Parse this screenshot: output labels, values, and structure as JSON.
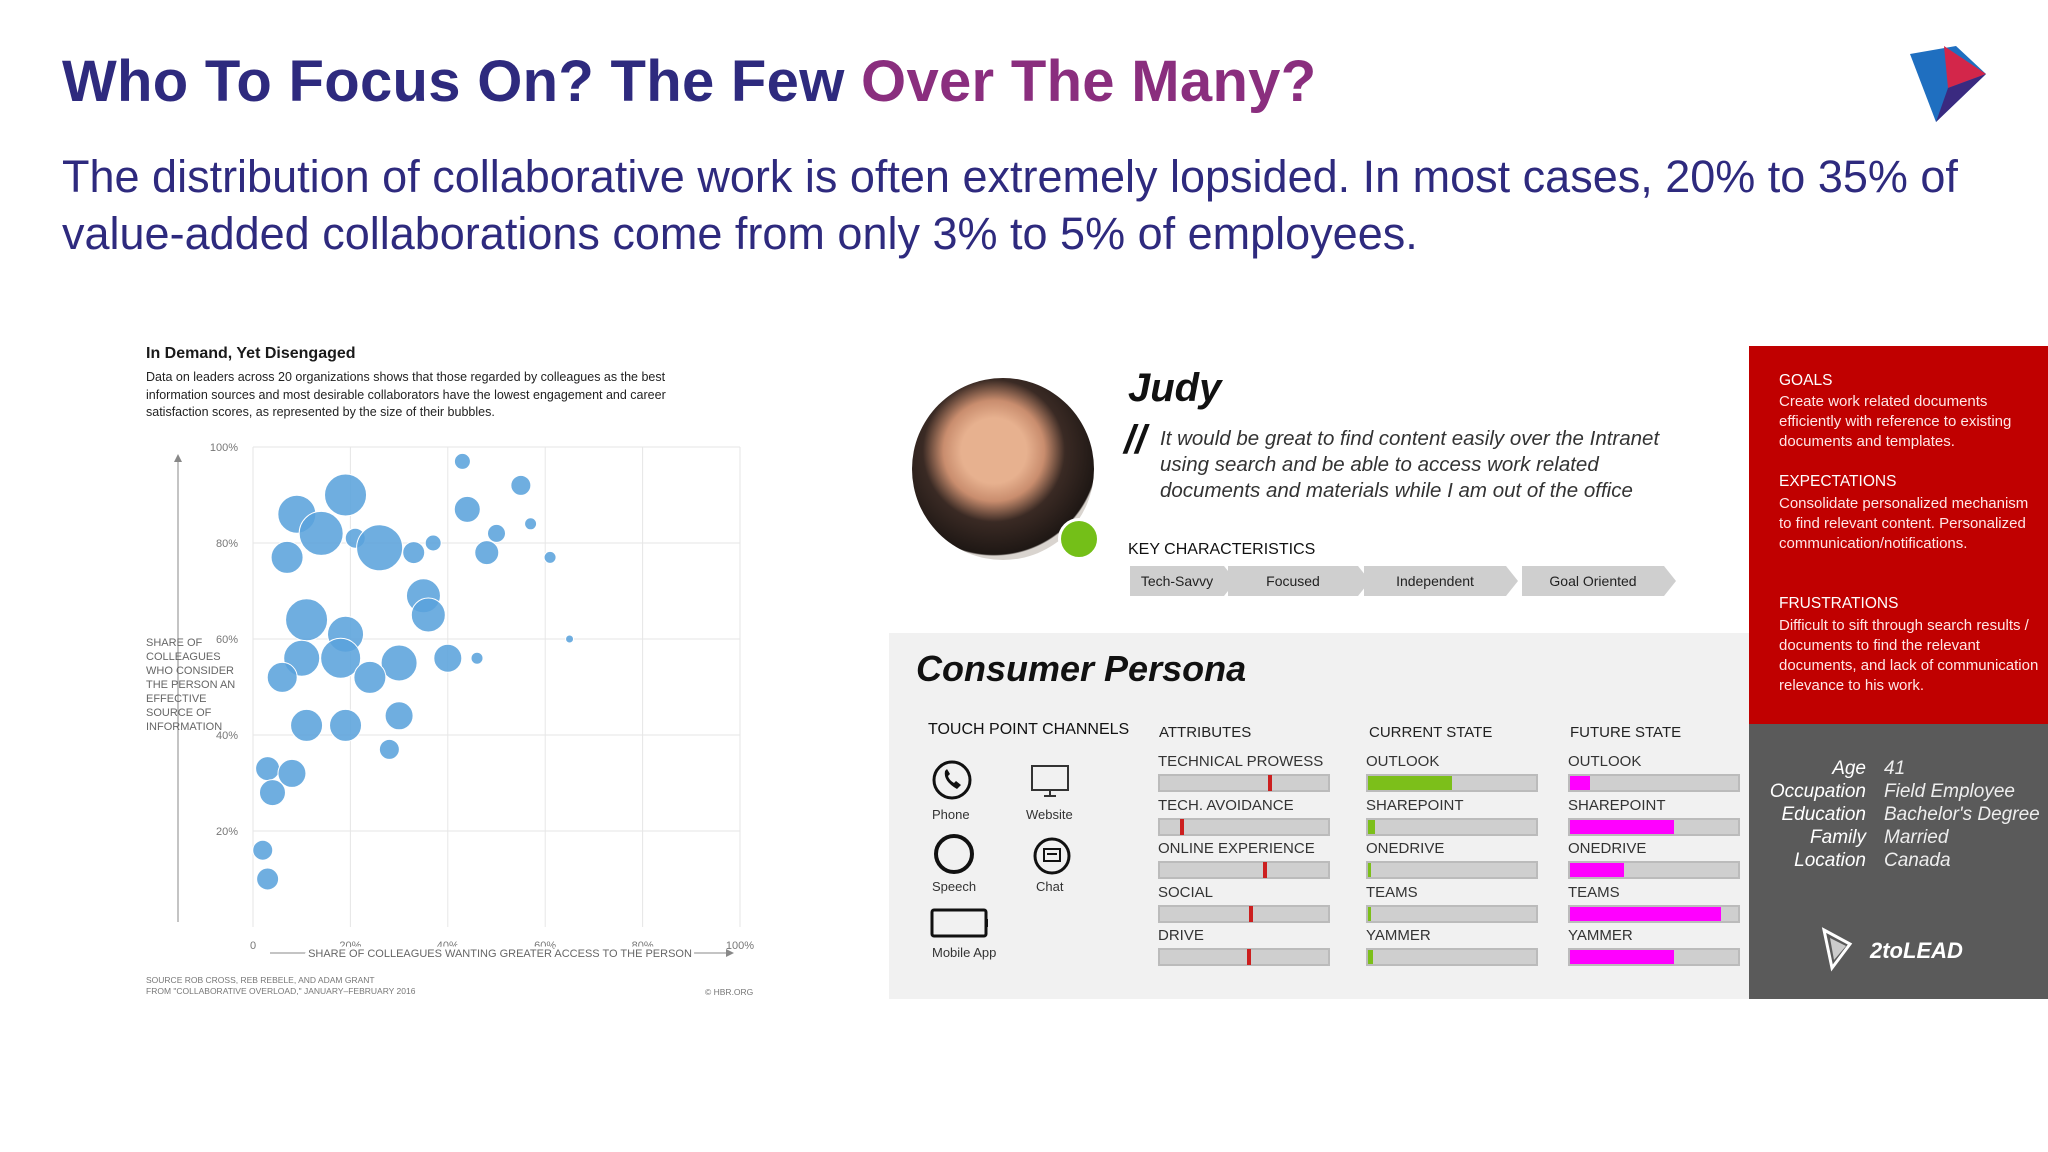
{
  "header": {
    "title_part1": "Who To Focus On? The Few ",
    "title_part2": "Over The Many?",
    "subtitle": "The distribution of collaborative work is often extremely lopsided. In most cases, 20% to 35% of value-added collaborations come from only 3% to 5% of employees."
  },
  "chart": {
    "title": "In Demand, Yet Disengaged",
    "description": "Data on leaders across 20 organizations shows that those regarded by colleagues as the best information sources and most desirable collaborators have the lowest engagement and career satisfaction scores, as represented by the size of their bubbles.",
    "ylabel": "Share of colleagues who consider the person an effective source of information",
    "xlabel": "Share of colleagues wanting greater access to the person",
    "source_line1": "Source  Rob Cross, Reb Rebele, and Adam Grant",
    "source_line2": "From  \"Collaborative Overload,\" January–February 2016",
    "credit": "© HBR.ORG",
    "bubble_color": "#5ba3dc"
  },
  "chart_data": {
    "type": "scatter",
    "title": "In Demand, Yet Disengaged",
    "xlabel": "SHARE OF COLLEAGUES WANTING GREATER ACCESS TO THE PERSON",
    "ylabel": "SHARE OF COLLEAGUES WHO CONSIDER THE PERSON AN EFFECTIVE SOURCE OF INFORMATION",
    "xlim": [
      0,
      100
    ],
    "ylim": [
      0,
      100
    ],
    "x_ticks": [
      "0",
      "20%",
      "40%",
      "60%",
      "80%",
      "100%"
    ],
    "y_ticks": [
      "20%",
      "40%",
      "60%",
      "80%",
      "100%"
    ],
    "grid": true,
    "points": [
      {
        "x": 19,
        "y": 90,
        "r": 21
      },
      {
        "x": 9,
        "y": 86,
        "r": 19
      },
      {
        "x": 14,
        "y": 82,
        "r": 22
      },
      {
        "x": 21,
        "y": 81,
        "r": 10
      },
      {
        "x": 26,
        "y": 79,
        "r": 23
      },
      {
        "x": 7,
        "y": 77,
        "r": 16
      },
      {
        "x": 43,
        "y": 97,
        "r": 8
      },
      {
        "x": 55,
        "y": 92,
        "r": 10
      },
      {
        "x": 44,
        "y": 87,
        "r": 13
      },
      {
        "x": 57,
        "y": 84,
        "r": 6
      },
      {
        "x": 50,
        "y": 82,
        "r": 9
      },
      {
        "x": 33,
        "y": 78,
        "r": 11
      },
      {
        "x": 37,
        "y": 80,
        "r": 8
      },
      {
        "x": 48,
        "y": 78,
        "r": 12
      },
      {
        "x": 61,
        "y": 77,
        "r": 6
      },
      {
        "x": 35,
        "y": 69,
        "r": 17
      },
      {
        "x": 36,
        "y": 65,
        "r": 17
      },
      {
        "x": 11,
        "y": 64,
        "r": 21
      },
      {
        "x": 19,
        "y": 61,
        "r": 18
      },
      {
        "x": 10,
        "y": 56,
        "r": 18
      },
      {
        "x": 18,
        "y": 56,
        "r": 20
      },
      {
        "x": 30,
        "y": 55,
        "r": 18
      },
      {
        "x": 40,
        "y": 56,
        "r": 14
      },
      {
        "x": 46,
        "y": 56,
        "r": 6
      },
      {
        "x": 6,
        "y": 52,
        "r": 15
      },
      {
        "x": 24,
        "y": 52,
        "r": 16
      },
      {
        "x": 65,
        "y": 60,
        "r": 4
      },
      {
        "x": 11,
        "y": 42,
        "r": 16
      },
      {
        "x": 19,
        "y": 42,
        "r": 16
      },
      {
        "x": 30,
        "y": 44,
        "r": 14
      },
      {
        "x": 28,
        "y": 37,
        "r": 10
      },
      {
        "x": 3,
        "y": 33,
        "r": 12
      },
      {
        "x": 8,
        "y": 32,
        "r": 14
      },
      {
        "x": 4,
        "y": 28,
        "r": 13
      },
      {
        "x": 2,
        "y": 16,
        "r": 10
      },
      {
        "x": 3,
        "y": 10,
        "r": 11
      }
    ]
  },
  "persona": {
    "name": "Judy",
    "quote_mark": "//",
    "quote": "It would be great to find content easily over the Intranet using search and be able to access work related documents and materials while I am out of the office",
    "key_characteristics_title": "KEY CHARACTERISTICS",
    "characteristics": [
      "Tech-Savvy",
      "Focused",
      "Independent",
      "Goal Oriented"
    ],
    "panel_title": "Consumer Persona",
    "touch_title": "TOUCH POINT CHANNELS",
    "touch_points": [
      "Phone",
      "Website",
      "Speech",
      "Chat",
      "Mobile App"
    ],
    "attributes_head": "ATTRIBUTES",
    "attributes": [
      {
        "label": "TECHNICAL PROWESS",
        "marker": 0.66
      },
      {
        "label": "TECH. AVOIDANCE",
        "marker": 0.12
      },
      {
        "label": "ONLINE EXPERIENCE",
        "marker": 0.63
      },
      {
        "label": "SOCIAL",
        "marker": 0.54
      },
      {
        "label": "DRIVE",
        "marker": 0.53
      }
    ],
    "current_head": "CURRENT STATE",
    "current": [
      {
        "label": "OUTLOOK",
        "value": 0.5
      },
      {
        "label": "SHAREPOINT",
        "value": 0.04
      },
      {
        "label": "ONEDRIVE",
        "value": 0.02
      },
      {
        "label": "TEAMS",
        "value": 0.02
      },
      {
        "label": "YAMMER",
        "value": 0.03
      }
    ],
    "future_head": "FUTURE STATE",
    "future": [
      {
        "label": "OUTLOOK",
        "value": 0.12
      },
      {
        "label": "SHAREPOINT",
        "value": 0.62
      },
      {
        "label": "ONEDRIVE",
        "value": 0.32
      },
      {
        "label": "TEAMS",
        "value": 0.9
      },
      {
        "label": "YAMMER",
        "value": 0.62
      }
    ],
    "current_color": "#7cbf1a",
    "future_color": "#ff00ff",
    "goals_head": "GOALS",
    "goals": "Create work related documents efficiently with reference to existing documents and templates.",
    "expectations_head": "EXPECTATIONS",
    "expectations": "Consolidate personalized mechanism to find relevant content. Personalized communication/notifications.",
    "frustrations_head": "FRUSTRATIONS",
    "frustrations": "Difficult to sift through search results / documents to find the relevant documents, and lack of communication relevance to his work.",
    "profile": [
      {
        "key": "Age",
        "value": "41"
      },
      {
        "key": "Occupation",
        "value": "Field Employee"
      },
      {
        "key": "Education",
        "value": "Bachelor's Degree"
      },
      {
        "key": "Family",
        "value": "Married"
      },
      {
        "key": "Location",
        "value": "Canada"
      }
    ],
    "brand": "2toLEAD"
  }
}
